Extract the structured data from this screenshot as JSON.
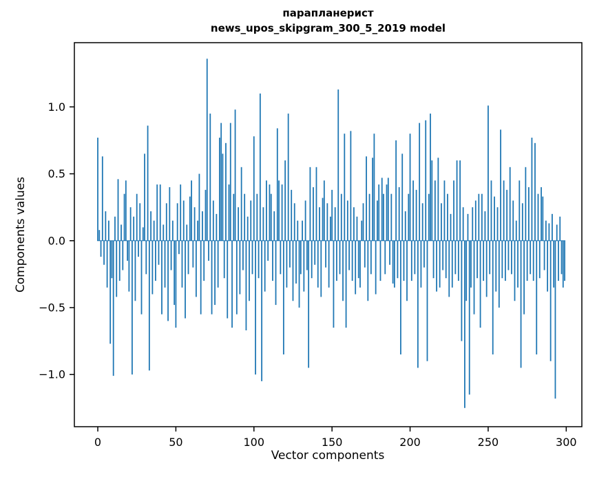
{
  "chart_data": {
    "type": "bar",
    "title": "парапланерист",
    "subtitle": "news_upos_skipgram_300_5_2019 model",
    "xlabel": "Vector components",
    "ylabel": "Components values",
    "x_ticks": [
      0,
      50,
      100,
      150,
      200,
      250,
      300
    ],
    "x_tick_labels": [
      "0",
      "50",
      "100",
      "150",
      "200",
      "250",
      "300"
    ],
    "y_ticks": [
      -1.0,
      -0.5,
      0.0,
      0.5,
      1.0
    ],
    "y_tick_labels": [
      "−1.0",
      "−0.5",
      "0.0",
      "0.5",
      "1.0"
    ],
    "xlim": [
      -15,
      310
    ],
    "ylim": [
      -1.39,
      1.48
    ],
    "bar_color": "#1f77b4",
    "grid": false,
    "legend": false,
    "n_components": 300,
    "values": [
      0.77,
      0.08,
      -0.12,
      0.63,
      -0.18,
      0.22,
      -0.35,
      0.15,
      -0.77,
      -0.28,
      -1.01,
      0.18,
      -0.42,
      0.46,
      -0.3,
      0.12,
      -0.22,
      0.35,
      0.45,
      -0.15,
      -0.38,
      0.25,
      -1.0,
      0.18,
      -0.45,
      0.35,
      -0.12,
      0.28,
      -0.55,
      0.1,
      0.65,
      -0.25,
      0.86,
      -0.97,
      0.22,
      -0.4,
      0.15,
      -0.3,
      0.42,
      -0.18,
      0.42,
      -0.55,
      0.12,
      -0.35,
      0.28,
      -0.6,
      0.4,
      -0.22,
      0.15,
      -0.48,
      -0.65,
      0.28,
      -0.1,
      0.42,
      -0.35,
      0.3,
      -0.58,
      0.12,
      -0.25,
      0.33,
      0.45,
      -0.2,
      0.25,
      -0.42,
      0.15,
      0.5,
      -0.55,
      0.22,
      -0.3,
      0.38,
      1.36,
      -0.15,
      0.95,
      -0.55,
      0.3,
      -0.48,
      0.2,
      -0.35,
      0.77,
      0.88,
      0.65,
      -0.28,
      0.73,
      -0.58,
      0.42,
      0.88,
      -0.65,
      0.35,
      0.98,
      -0.55,
      0.25,
      -0.4,
      0.55,
      -0.22,
      0.35,
      -0.67,
      0.18,
      -0.45,
      0.3,
      -0.25,
      0.78,
      -1.0,
      0.35,
      -0.28,
      1.1,
      -1.05,
      0.25,
      -0.38,
      0.45,
      -0.15,
      0.42,
      0.35,
      -0.3,
      0.22,
      -0.48,
      0.84,
      0.45,
      -0.25,
      0.42,
      -0.85,
      0.6,
      -0.35,
      0.95,
      -0.2,
      0.38,
      -0.45,
      0.28,
      -0.32,
      0.15,
      -0.5,
      -0.25,
      0.15,
      -0.38,
      0.3,
      -0.22,
      -0.95,
      0.55,
      -0.28,
      0.4,
      -0.18,
      0.55,
      -0.35,
      0.25,
      -0.42,
      0.32,
      0.45,
      -0.2,
      0.28,
      -0.35,
      0.18,
      0.38,
      -0.65,
      0.25,
      -0.3,
      1.13,
      -0.25,
      0.35,
      -0.45,
      0.8,
      -0.65,
      0.3,
      -0.22,
      0.82,
      -0.3,
      0.25,
      -0.4,
      0.18,
      -0.28,
      -0.35,
      0.15,
      0.28,
      -0.2,
      0.63,
      -0.45,
      0.35,
      -0.25,
      0.62,
      0.8,
      -0.4,
      0.3,
      0.42,
      -0.3,
      0.47,
      0.35,
      -0.25,
      0.42,
      0.47,
      -0.18,
      0.35,
      -0.32,
      -0.35,
      0.75,
      -0.28,
      0.4,
      -0.85,
      0.65,
      -0.3,
      0.22,
      -0.45,
      0.35,
      0.8,
      -0.3,
      0.45,
      -0.25,
      0.38,
      -0.95,
      0.88,
      -0.35,
      0.28,
      -0.2,
      0.9,
      -0.9,
      0.35,
      0.95,
      0.6,
      -0.28,
      0.45,
      -0.38,
      0.62,
      -0.35,
      0.28,
      -0.22,
      0.45,
      -0.28,
      0.35,
      -0.42,
      0.2,
      -0.35,
      0.45,
      -0.25,
      0.6,
      -0.3,
      0.6,
      -0.75,
      0.25,
      -1.25,
      -0.45,
      0.2,
      -1.15,
      -0.35,
      0.25,
      -0.55,
      0.3,
      -0.28,
      0.35,
      -0.65,
      0.35,
      -0.3,
      0.22,
      -0.42,
      1.01,
      -0.25,
      0.45,
      -0.85,
      0.33,
      -0.38,
      0.25,
      -0.5,
      0.83,
      -0.28,
      0.45,
      -0.3,
      0.38,
      -0.22,
      0.55,
      -0.25,
      0.3,
      -0.45,
      0.15,
      -0.35,
      0.45,
      -0.95,
      0.28,
      -0.55,
      0.55,
      -0.3,
      0.4,
      -0.25,
      0.77,
      -0.3,
      0.73,
      -0.85,
      0.35,
      -0.28,
      0.4,
      0.33,
      -0.22,
      0.15,
      -0.38,
      0.13,
      -0.9,
      0.2,
      -0.35,
      -1.18,
      0.12,
      -0.3,
      0.18,
      -0.25,
      -0.35,
      -0.3
    ]
  }
}
